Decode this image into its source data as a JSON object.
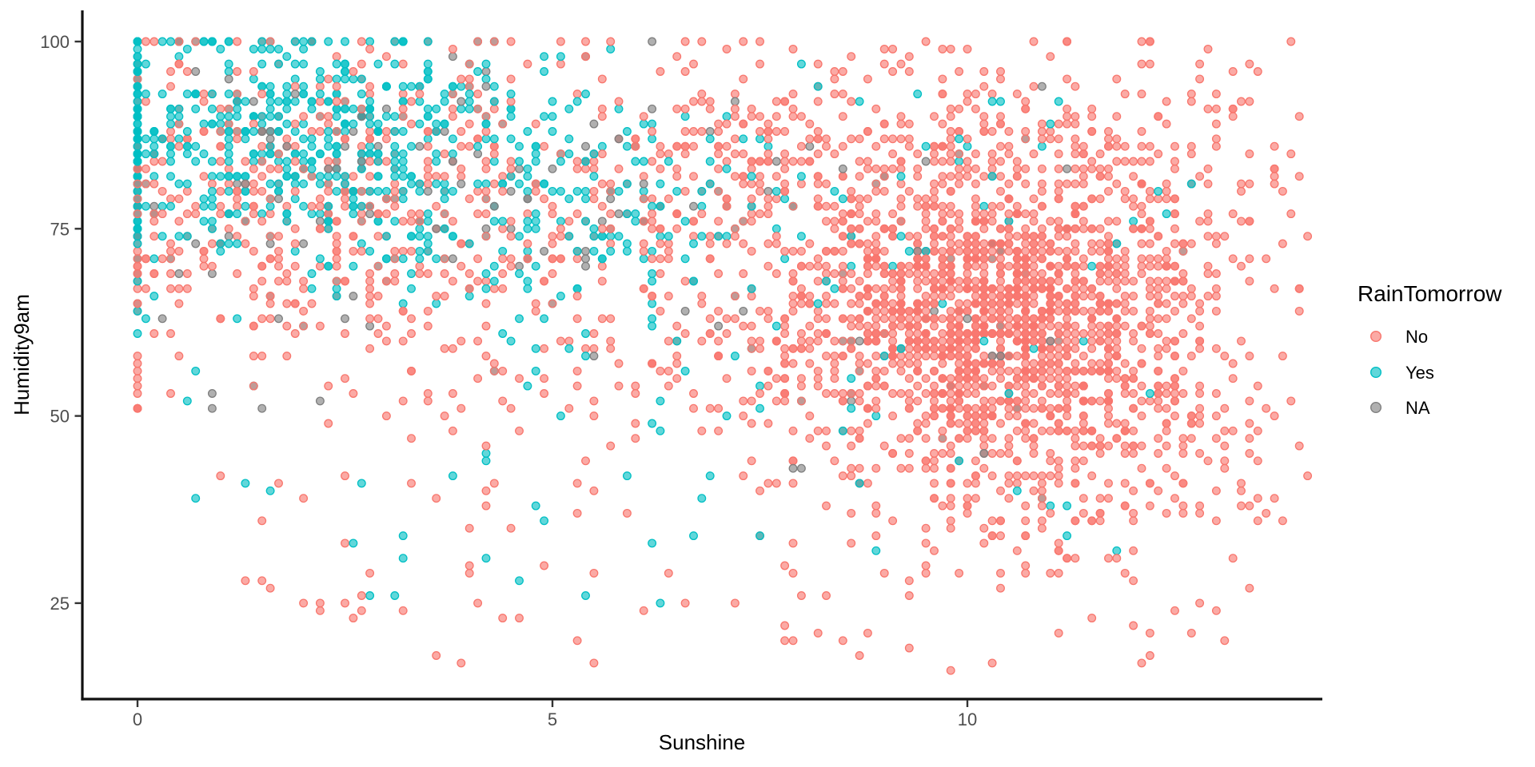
{
  "chart_data": {
    "type": "scatter",
    "title": "",
    "xlabel": "Sunshine",
    "ylabel": "Humidity9am",
    "x_ticks": [
      0,
      5,
      10
    ],
    "y_ticks": [
      25,
      50,
      75,
      100
    ],
    "x_range": [
      -0.66,
      14.28
    ],
    "y_range": [
      12.2,
      104.2
    ],
    "grid": false,
    "theme": "classic-white-no-gridlines",
    "legend": {
      "title": "RainTomorrow",
      "position": "right",
      "entries": [
        {
          "label": "No",
          "color": "#F8766D"
        },
        {
          "label": "Yes",
          "color": "#00BFC4"
        },
        {
          "label": "NA",
          "color": "#7F7F7F"
        }
      ]
    },
    "point_style": {
      "radius": 4.8,
      "fill_opacity": 0.62,
      "stroke_opacity": 1,
      "stroke_width": 1.3
    },
    "quantize": {
      "x_step": 0.1,
      "y_step": 1
    },
    "seed": 20240613,
    "total_points_estimate": 3982,
    "series_summary": [
      {
        "name": "No",
        "n": 2984,
        "pattern": "dominates high Sunshine; very dense core near x=10.3, y=64; spreads to low humidity bottom-right"
      },
      {
        "name": "Yes",
        "n": 872,
        "pattern": "concentrated at low Sunshine with high Humidity; dense overplotted column at x=0 between y=58 and 100"
      },
      {
        "name": "NA",
        "n": 126,
        "pattern": "sparse grey points mostly at low-mid Sunshine and high Humidity"
      }
    ],
    "clusters": [
      {
        "series": "No",
        "n": 1050,
        "x": {
          "dist": "gauss",
          "mean": 10.3,
          "sd": 1.15,
          "min": 7.2,
          "max": 13.6
        },
        "y": {
          "dist": "gauss",
          "mean": 64,
          "sd": 7.5,
          "min": 42,
          "max": 88
        }
      },
      {
        "series": "No",
        "n": 450,
        "x": {
          "dist": "gauss",
          "mean": 10.9,
          "sd": 1.5,
          "min": 7.0,
          "max": 14.1
        },
        "y": {
          "dist": "gauss",
          "mean": 49,
          "sd": 9,
          "min": 22,
          "max": 68
        }
      },
      {
        "series": "No",
        "n": 420,
        "x": {
          "dist": "gauss",
          "mean": 9.5,
          "sd": 2.0,
          "min": 4.5,
          "max": 14.1
        },
        "y": {
          "dist": "gauss",
          "mean": 80,
          "sd": 9,
          "min": 60,
          "max": 100,
          "clamp": true
        }
      },
      {
        "series": "No",
        "n": 520,
        "x": {
          "dist": "uniform",
          "min": 0.1,
          "max": 14.0
        },
        "y": {
          "dist": "gauss",
          "mean": 82,
          "sd": 10,
          "min": 58,
          "max": 100,
          "clamp": true
        }
      },
      {
        "series": "No",
        "n": 260,
        "x": {
          "dist": "gauss",
          "mean": 2.6,
          "sd": 1.8,
          "min": 0.0,
          "max": 6.5
        },
        "y": {
          "dist": "gauss",
          "mean": 76,
          "sd": 11,
          "min": 48,
          "max": 100,
          "clamp": true
        }
      },
      {
        "series": "No",
        "n": 160,
        "x": {
          "dist": "gauss",
          "mean": 6.5,
          "sd": 2.2,
          "min": 1.5,
          "max": 11.0
        },
        "y": {
          "dist": "gauss",
          "mean": 57,
          "sd": 9,
          "min": 35,
          "max": 80
        }
      },
      {
        "series": "No",
        "n": 90,
        "x": {
          "dist": "uniform",
          "min": 1.0,
          "max": 13.8
        },
        "y": {
          "dist": "uniform",
          "min": 16,
          "max": 42
        }
      },
      {
        "series": "No",
        "n": 34,
        "x": {
          "dist": "const",
          "value": 0
        },
        "y": {
          "dist": "uniform",
          "min": 50,
          "max": 97
        }
      },
      {
        "series": "Yes",
        "n": 110,
        "x": {
          "dist": "const",
          "value": 0
        },
        "y": {
          "dist": "gauss",
          "mean": 88,
          "sd": 9,
          "min": 58,
          "max": 100,
          "clamp": true
        }
      },
      {
        "series": "Yes",
        "n": 330,
        "x": {
          "dist": "gauss",
          "mean": 1.7,
          "sd": 1.3,
          "min": 0.05,
          "max": 4.8
        },
        "y": {
          "dist": "gauss",
          "mean": 87,
          "sd": 7.5,
          "min": 63,
          "max": 100,
          "clamp": true
        }
      },
      {
        "series": "Yes",
        "n": 240,
        "x": {
          "dist": "gauss",
          "mean": 3.6,
          "sd": 1.9,
          "min": 0.05,
          "max": 8.0
        },
        "y": {
          "dist": "gauss",
          "mean": 80,
          "sd": 9,
          "min": 55,
          "max": 100,
          "clamp": true
        }
      },
      {
        "series": "Yes",
        "n": 130,
        "x": {
          "dist": "gauss",
          "mean": 7.5,
          "sd": 2.6,
          "min": 4.0,
          "max": 13.5
        },
        "y": {
          "dist": "gauss",
          "mean": 76,
          "sd": 11,
          "min": 45,
          "max": 100
        }
      },
      {
        "series": "Yes",
        "n": 55,
        "x": {
          "dist": "uniform",
          "min": 0.2,
          "max": 12.5
        },
        "y": {
          "dist": "uniform",
          "min": 32,
          "max": 62
        }
      },
      {
        "series": "Yes",
        "n": 7,
        "x": {
          "dist": "uniform",
          "min": 1.5,
          "max": 10.5
        },
        "y": {
          "dist": "uniform",
          "min": 15,
          "max": 31
        }
      },
      {
        "series": "NA",
        "n": 62,
        "x": {
          "dist": "gauss",
          "mean": 3.4,
          "sd": 2.1,
          "min": 0.0,
          "max": 8.5
        },
        "y": {
          "dist": "gauss",
          "mean": 83,
          "sd": 8,
          "min": 60,
          "max": 100,
          "clamp": true
        }
      },
      {
        "series": "NA",
        "n": 48,
        "x": {
          "dist": "uniform",
          "min": 0.1,
          "max": 12.0
        },
        "y": {
          "dist": "uniform",
          "min": 48,
          "max": 95
        }
      },
      {
        "series": "NA",
        "n": 10,
        "x": {
          "dist": "gauss",
          "mean": 9.5,
          "sd": 1.5,
          "min": 6.0,
          "max": 12.5
        },
        "y": {
          "dist": "uniform",
          "min": 40,
          "max": 70
        }
      },
      {
        "series": "NA",
        "n": 6,
        "x": {
          "dist": "const",
          "value": 0
        },
        "y": {
          "dist": "uniform",
          "min": 62,
          "max": 95
        }
      }
    ]
  }
}
